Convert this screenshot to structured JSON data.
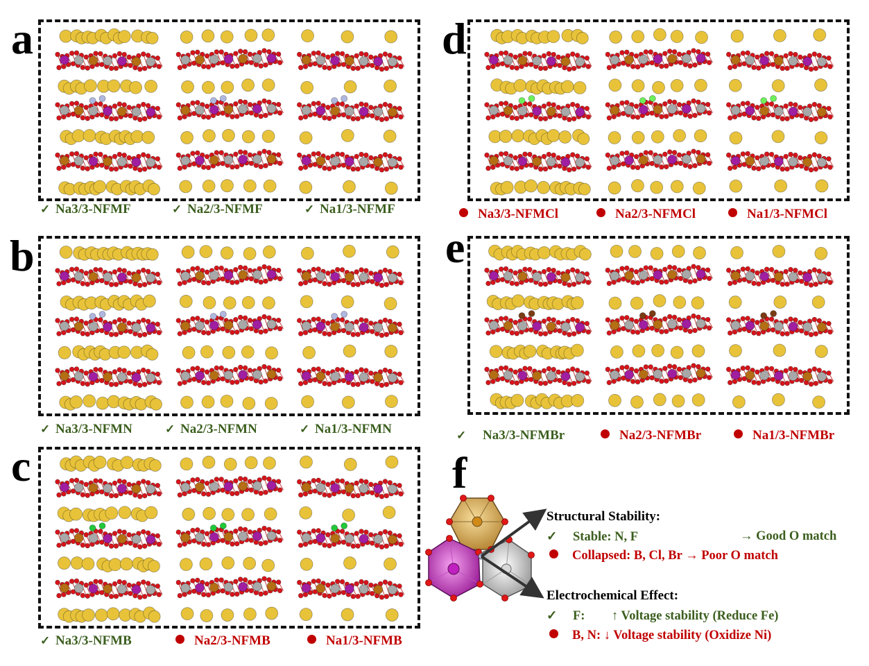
{
  "panels": {
    "a": {
      "letter": "a",
      "items": [
        {
          "mark": "check",
          "label": "Na3/3-NFMF",
          "status": "stable"
        },
        {
          "mark": "check",
          "label": "Na2/3-NFMF",
          "status": "stable"
        },
        {
          "mark": "check",
          "label": "Na1/3-NFMF",
          "status": "stable"
        }
      ]
    },
    "b": {
      "letter": "b",
      "items": [
        {
          "mark": "check",
          "label": "Na3/3-NFMN",
          "status": "stable"
        },
        {
          "mark": "check",
          "label": "Na2/3-NFMN",
          "status": "stable"
        },
        {
          "mark": "check",
          "label": "Na1/3-NFMN",
          "status": "stable"
        }
      ]
    },
    "c": {
      "letter": "c",
      "items": [
        {
          "mark": "check",
          "label": "Na3/3-NFMB",
          "status": "stable"
        },
        {
          "mark": "dot",
          "label": "Na2/3-NFMB",
          "status": "collapsed"
        },
        {
          "mark": "dot",
          "label": "Na1/3-NFMB",
          "status": "collapsed"
        }
      ]
    },
    "d": {
      "letter": "d",
      "items": [
        {
          "mark": "dot",
          "label": "Na3/3-NFMCl",
          "status": "collapsed"
        },
        {
          "mark": "dot",
          "label": "Na2/3-NFMCl",
          "status": "collapsed"
        },
        {
          "mark": "dot",
          "label": "Na1/3-NFMCl",
          "status": "collapsed"
        }
      ]
    },
    "e": {
      "letter": "e",
      "items": [
        {
          "mark": "check",
          "label": "Na3/3-NFMBr",
          "status": "stable"
        },
        {
          "mark": "dot",
          "label": "Na2/3-NFMBr",
          "status": "collapsed"
        },
        {
          "mark": "dot",
          "label": "Na1/3-NFMBr",
          "status": "collapsed"
        }
      ]
    },
    "f": {
      "letter": "f"
    }
  },
  "summary": {
    "structural_heading": "Structural Stability:",
    "stable_line": "Stable: N, F",
    "stable_result": "→ Good O match",
    "collapsed_line": "Collapsed: B, Cl, Br",
    "collapsed_result": "→ Poor O match",
    "electro_heading": "Electrochemical Effect:",
    "f_label": "F:",
    "f_effect": "↑ Voltage stability (Reduce Fe)",
    "bn_label": "B, N:",
    "bn_effect": "↓ Voltage stability (Oxidize Ni)"
  },
  "marks": {
    "check": "✓"
  },
  "colors": {
    "stable": "#3b5e1e",
    "collapsed": "#c00000",
    "na": "#e8c33a",
    "oxygen": "#d8141a",
    "ni": "#a01ea0",
    "fe": "#b46e14",
    "mn": "#a8a8a8",
    "f": "#b0b8e0",
    "b": "#22c83a",
    "cl": "#6ef05a",
    "br": "#7a3c14"
  }
}
